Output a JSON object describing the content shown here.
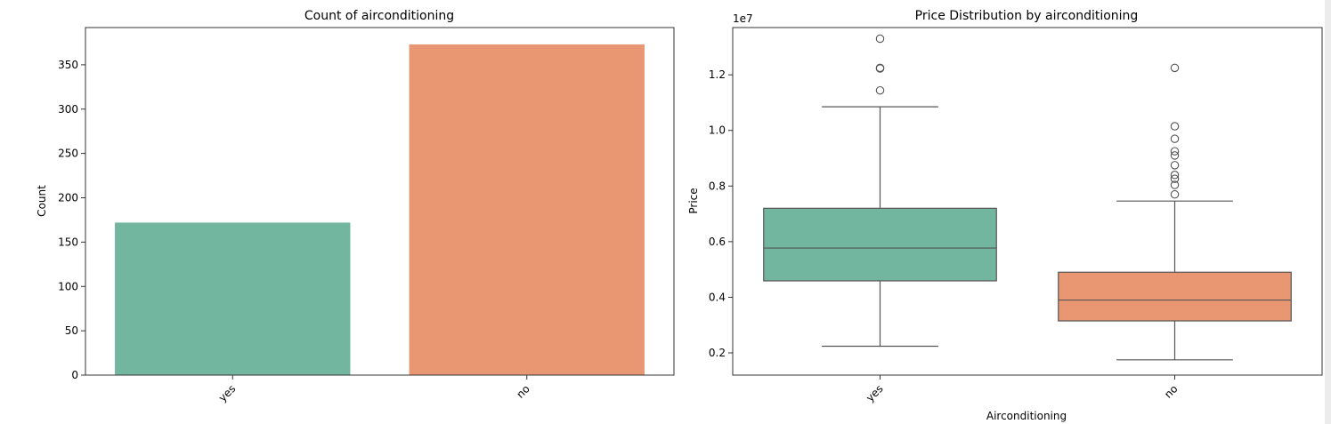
{
  "colors": {
    "yes": "#73b6a0",
    "no": "#e99673",
    "line": "#555555",
    "axis": "#333333"
  },
  "chart_data": [
    {
      "type": "bar",
      "title": "Count of airconditioning",
      "xlabel": "",
      "ylabel": "Count",
      "categories": [
        "yes",
        "no"
      ],
      "values": [
        172,
        373
      ],
      "ylim": [
        0,
        392
      ],
      "yticks": [
        0,
        50,
        100,
        150,
        200,
        250,
        300,
        350
      ],
      "grid": false,
      "colors": [
        "#73b6a0",
        "#e99673"
      ]
    },
    {
      "type": "box",
      "title": "Price Distribution by airconditioning",
      "xlabel": "Airconditioning",
      "ylabel": "Price",
      "offset_label": "1e7",
      "categories": [
        "yes",
        "no"
      ],
      "ylim": [
        0.12,
        1.37
      ],
      "yticks": [
        0.2,
        0.4,
        0.6,
        0.8,
        1.0,
        1.2
      ],
      "grid": false,
      "colors": [
        "#73b6a0",
        "#e99673"
      ],
      "boxes": [
        {
          "category": "yes",
          "whisker_low": 0.224,
          "q1": 0.459,
          "median": 0.577,
          "q3": 0.72,
          "whisker_high": 1.085,
          "outliers": [
            1.33,
            1.225,
            1.223,
            1.144
          ]
        },
        {
          "category": "no",
          "whisker_low": 0.175,
          "q1": 0.315,
          "median": 0.39,
          "q3": 0.49,
          "whisker_high": 0.746,
          "outliers": [
            1.225,
            1.015,
            0.97,
            0.925,
            0.91,
            0.875,
            0.84,
            0.826,
            0.804,
            0.77
          ]
        }
      ]
    }
  ]
}
